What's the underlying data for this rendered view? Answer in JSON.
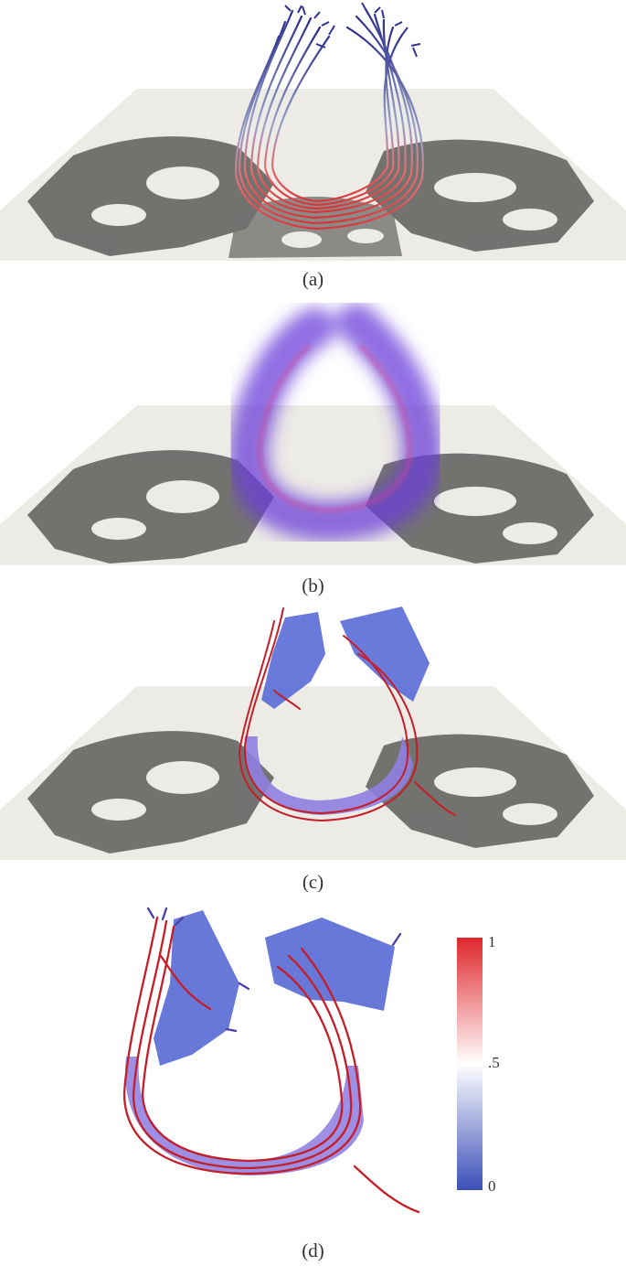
{
  "figure": {
    "panels": [
      {
        "id": "a",
        "caption": "(a)",
        "depiction": "fiber-tract-streamlines"
      },
      {
        "id": "b",
        "caption": "(b)",
        "depiction": "volume-rendered-tract"
      },
      {
        "id": "c",
        "caption": "(c)",
        "depiction": "tract-surface-with-streamlines"
      },
      {
        "id": "d",
        "caption": "(d)",
        "depiction": "tract-surface-closeup"
      }
    ],
    "colorbar": {
      "labels": {
        "top": "1",
        "mid": ".5",
        "bottom": "0"
      },
      "value_range": [
        0,
        1
      ],
      "colors": {
        "low": "#3b4fb8",
        "mid": "#ffffff",
        "high": "#e0262b"
      }
    },
    "colors": {
      "slice_bg": "#ecebe6",
      "tissue_dark": "#5a5a58",
      "fiber_blue": "#3a3f9a",
      "fiber_red": "#d9343a",
      "surface_blue": "#5a6cd6",
      "volume_purple": "#6b3fd8"
    }
  }
}
